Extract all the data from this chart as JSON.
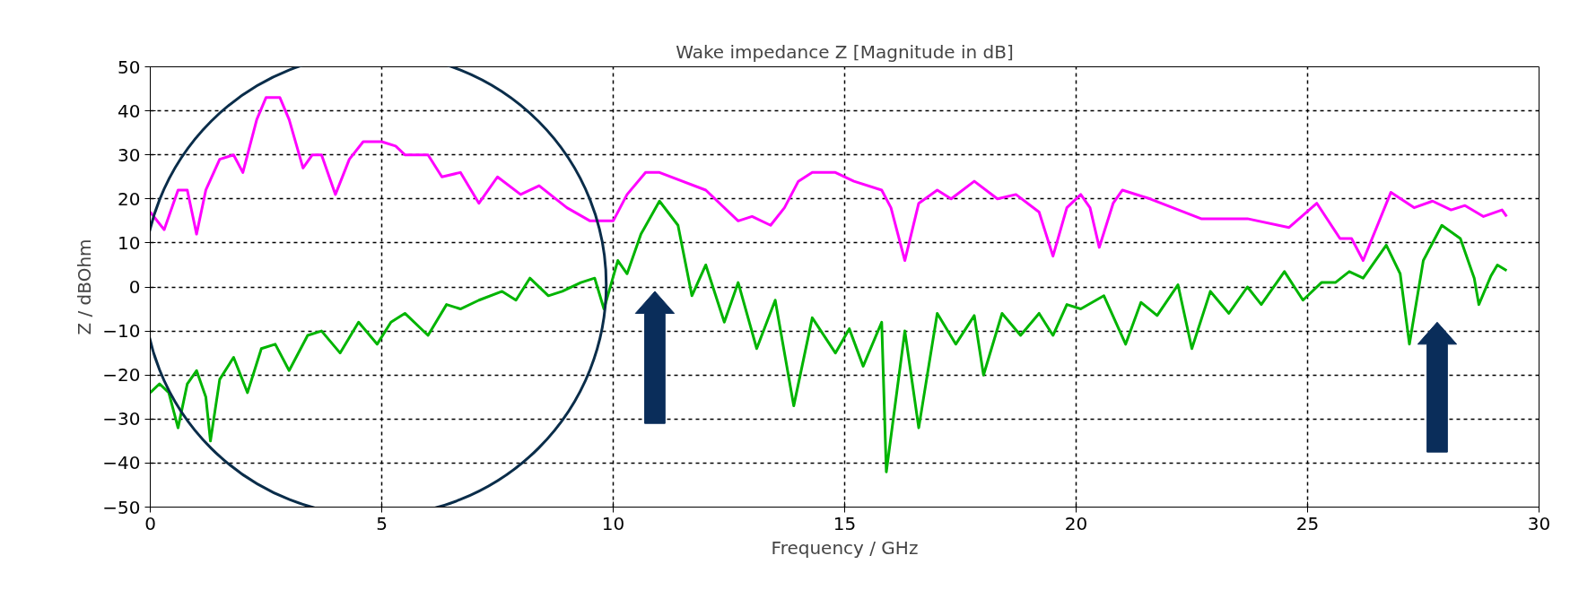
{
  "chart_data": {
    "type": "line",
    "title": "Wake impedance Z [Magnitude in dB]",
    "xlabel": "Frequency / GHz",
    "ylabel": "Z / dBOhm",
    "xlim": [
      0,
      30
    ],
    "ylim": [
      -50,
      50
    ],
    "xticks": [
      0,
      5,
      10,
      15,
      20,
      25,
      30
    ],
    "yticks": [
      -50,
      -40,
      -30,
      -20,
      -10,
      0,
      10,
      20,
      30,
      40,
      50
    ],
    "grid": true,
    "marker": "none",
    "line_style": "solid",
    "series": [
      {
        "color": "#ff00ff",
        "x": [
          0,
          0.3,
          0.6,
          0.8,
          1.0,
          1.2,
          1.5,
          1.8,
          2.0,
          2.3,
          2.5,
          2.8,
          3.0,
          3.3,
          3.5,
          3.7,
          4.0,
          4.3,
          4.6,
          5.0,
          5.3,
          5.5,
          6.0,
          6.3,
          6.7,
          7.1,
          7.5,
          8.0,
          8.4,
          9.0,
          9.5,
          10.0,
          10.3,
          10.7,
          11.0,
          12.0,
          12.7,
          13.0,
          13.4,
          13.7,
          14.0,
          14.3,
          14.8,
          15.2,
          15.8,
          16.0,
          16.3,
          16.6,
          17.0,
          17.3,
          17.8,
          18.3,
          18.7,
          19.2,
          19.5,
          19.8,
          20.1,
          20.3,
          20.5,
          20.8,
          21.0,
          21.6,
          22.7,
          23.7,
          24.6,
          25.2,
          25.7,
          25.95,
          26.2,
          26.8,
          27.3,
          27.7,
          28.1,
          28.4,
          28.8,
          29.2,
          29.3
        ],
        "values": [
          17,
          13,
          22,
          22,
          12,
          22,
          29,
          30,
          26,
          38,
          43,
          43,
          38,
          27,
          30,
          30,
          21,
          29,
          33,
          33,
          32,
          30,
          30,
          25,
          26,
          19,
          25,
          21,
          23,
          18,
          15,
          15,
          21,
          26,
          26,
          22,
          15,
          16,
          14,
          18,
          24,
          26,
          26,
          24,
          22,
          18,
          6,
          19,
          22,
          20,
          24,
          20,
          21,
          17,
          7,
          18,
          21,
          18,
          9,
          19,
          22,
          20,
          15.5,
          15.5,
          13.5,
          19,
          11,
          11,
          6,
          21.5,
          18,
          19.5,
          17.5,
          18.5,
          16,
          17.5,
          16
        ]
      },
      {
        "color": "#00b400",
        "x": [
          0,
          0.2,
          0.4,
          0.6,
          0.8,
          1.0,
          1.2,
          1.3,
          1.5,
          1.8,
          2.1,
          2.4,
          2.7,
          3.0,
          3.4,
          3.7,
          4.1,
          4.5,
          4.9,
          5.2,
          5.5,
          6.0,
          6.4,
          6.7,
          7.1,
          7.6,
          7.9,
          8.2,
          8.6,
          8.9,
          9.3,
          9.6,
          9.8,
          10.1,
          10.3,
          10.6,
          11.0,
          11.4,
          11.7,
          12.0,
          12.4,
          12.7,
          13.1,
          13.5,
          13.9,
          14.3,
          14.8,
          15.1,
          15.4,
          15.8,
          15.9,
          16.3,
          16.6,
          17.0,
          17.4,
          17.8,
          18.0,
          18.4,
          18.8,
          19.2,
          19.5,
          19.8,
          20.1,
          20.6,
          21.07,
          21.4,
          21.75,
          22.2,
          22.5,
          22.9,
          23.3,
          23.7,
          24.0,
          24.5,
          24.9,
          25.3,
          25.6,
          25.9,
          26.2,
          26.7,
          27.0,
          27.2,
          27.5,
          27.9,
          28.3,
          28.6,
          28.7,
          28.96,
          29.1,
          29.3
        ],
        "values": [
          -24,
          -22,
          -24,
          -32,
          -22,
          -19,
          -25,
          -35,
          -21,
          -16,
          -24,
          -14,
          -13,
          -19,
          -11,
          -10,
          -15,
          -8,
          -13,
          -8,
          -6,
          -11,
          -4,
          -5,
          -3,
          -1,
          -3,
          2,
          -2,
          -1,
          1,
          2,
          -5,
          6,
          3,
          12,
          19.5,
          14,
          -2,
          5,
          -8,
          1,
          -14,
          -3,
          -27,
          -7,
          -15,
          -9.5,
          -18,
          -8,
          -42,
          -10,
          -32,
          -6,
          -13,
          -6.5,
          -20,
          -6,
          -11,
          -6,
          -11,
          -4,
          -5,
          -2,
          -13,
          -3.5,
          -6.5,
          0.5,
          -14,
          -1,
          -6,
          0,
          -4,
          3.5,
          -3,
          1,
          1,
          3.5,
          2,
          9.5,
          3,
          -13,
          6,
          14,
          11,
          2,
          -4,
          2.5,
          5,
          3.7
        ]
      }
    ]
  }
}
